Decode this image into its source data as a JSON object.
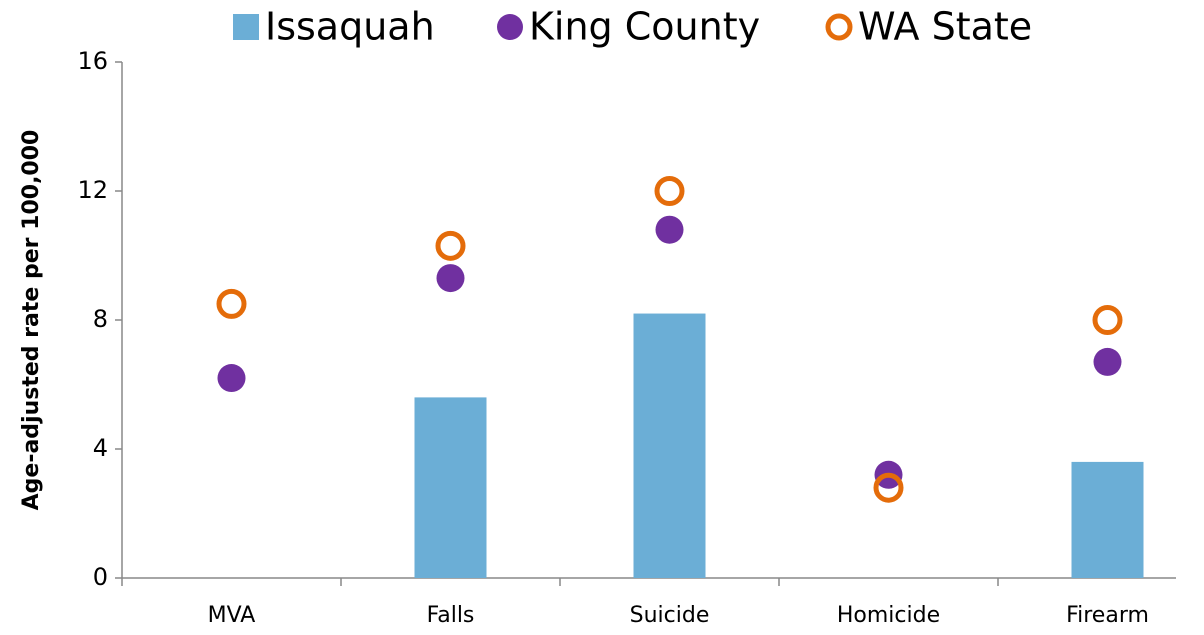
{
  "chart_data": {
    "type": "bar",
    "y_label": "Age-adjusted rate per 100,000",
    "categories": [
      "MVA",
      "Falls",
      "Suicide",
      "Homicide",
      "Firearm"
    ],
    "series": [
      {
        "name": "Issaquah",
        "type": "bar",
        "color": "#6baed6",
        "values": [
          null,
          5.6,
          8.2,
          null,
          3.6
        ]
      },
      {
        "name": "King County",
        "type": "scatter",
        "marker": "dot",
        "color": "#7030a0",
        "values": [
          6.2,
          9.3,
          10.8,
          3.2,
          6.7
        ]
      },
      {
        "name": "WA State",
        "type": "scatter",
        "marker": "ring",
        "color": "#e46c0a",
        "values": [
          8.5,
          10.3,
          12.0,
          2.8,
          8.0
        ]
      }
    ],
    "ylim": [
      0,
      16
    ],
    "yticks": [
      0,
      4,
      8,
      12,
      16
    ],
    "grid": false,
    "legend": "top"
  }
}
